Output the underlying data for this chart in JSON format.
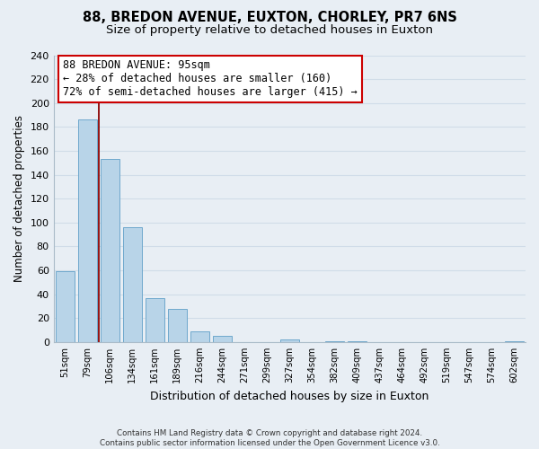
{
  "title1": "88, BREDON AVENUE, EUXTON, CHORLEY, PR7 6NS",
  "title2": "Size of property relative to detached houses in Euxton",
  "xlabel": "Distribution of detached houses by size in Euxton",
  "ylabel": "Number of detached properties",
  "categories": [
    "51sqm",
    "79sqm",
    "106sqm",
    "134sqm",
    "161sqm",
    "189sqm",
    "216sqm",
    "244sqm",
    "271sqm",
    "299sqm",
    "327sqm",
    "354sqm",
    "382sqm",
    "409sqm",
    "437sqm",
    "464sqm",
    "492sqm",
    "519sqm",
    "547sqm",
    "574sqm",
    "602sqm"
  ],
  "values": [
    59,
    186,
    153,
    96,
    37,
    28,
    9,
    5,
    0,
    0,
    2,
    0,
    1,
    1,
    0,
    0,
    0,
    0,
    0,
    0,
    1
  ],
  "bar_color": "#b8d4e8",
  "bar_edge_color": "#6fa8cc",
  "vertical_line_color": "#8b0000",
  "annotation_line1": "88 BREDON AVENUE: 95sqm",
  "annotation_line2": "← 28% of detached houses are smaller (160)",
  "annotation_line3": "72% of semi-detached houses are larger (415) →",
  "ylim": [
    0,
    240
  ],
  "yticks": [
    0,
    20,
    40,
    60,
    80,
    100,
    120,
    140,
    160,
    180,
    200,
    220,
    240
  ],
  "footer_text": "Contains HM Land Registry data © Crown copyright and database right 2024.\nContains public sector information licensed under the Open Government Licence v3.0.",
  "bg_color": "#e8eef4",
  "grid_color": "#d0dce8",
  "title1_fontsize": 10.5,
  "title2_fontsize": 9.5,
  "xlabel_fontsize": 9,
  "ylabel_fontsize": 8.5,
  "annotation_fontsize": 8.5
}
